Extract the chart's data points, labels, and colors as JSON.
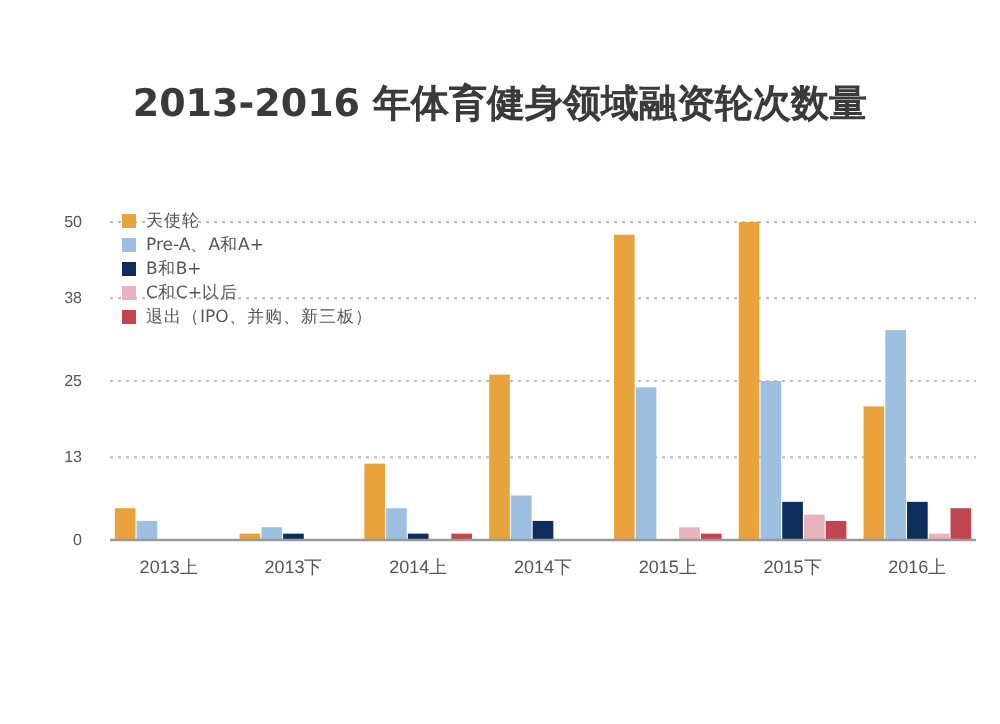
{
  "chart_data": {
    "type": "bar",
    "title": "2013-2016 年体育健身领域融资轮次数量",
    "categories": [
      "2013上",
      "2013下",
      "2014上",
      "2014下",
      "2015上",
      "2015下",
      "2016上"
    ],
    "series": [
      {
        "name": "天使轮",
        "color": "#e8a33d",
        "values": [
          5,
          1,
          12,
          26,
          48,
          50,
          21
        ]
      },
      {
        "name": "Pre-A、A和A+",
        "color": "#9dbfe0",
        "values": [
          3,
          2,
          5,
          7,
          24,
          25,
          33
        ]
      },
      {
        "name": "B和B+",
        "color": "#0f2d5c",
        "values": [
          0,
          1,
          1,
          3,
          0,
          6,
          6
        ]
      },
      {
        "name": "C和C+以后",
        "color": "#e8b4bc",
        "values": [
          0,
          0,
          0,
          0,
          2,
          4,
          1
        ]
      },
      {
        "name": "退出（IPO、并购、新三板）",
        "color": "#c0474f",
        "values": [
          0,
          0,
          1,
          0,
          1,
          3,
          5
        ]
      }
    ],
    "ylim": [
      0,
      50
    ],
    "yticks": [
      0,
      13,
      25,
      38,
      50
    ],
    "grid": "y",
    "legend": "top left"
  }
}
